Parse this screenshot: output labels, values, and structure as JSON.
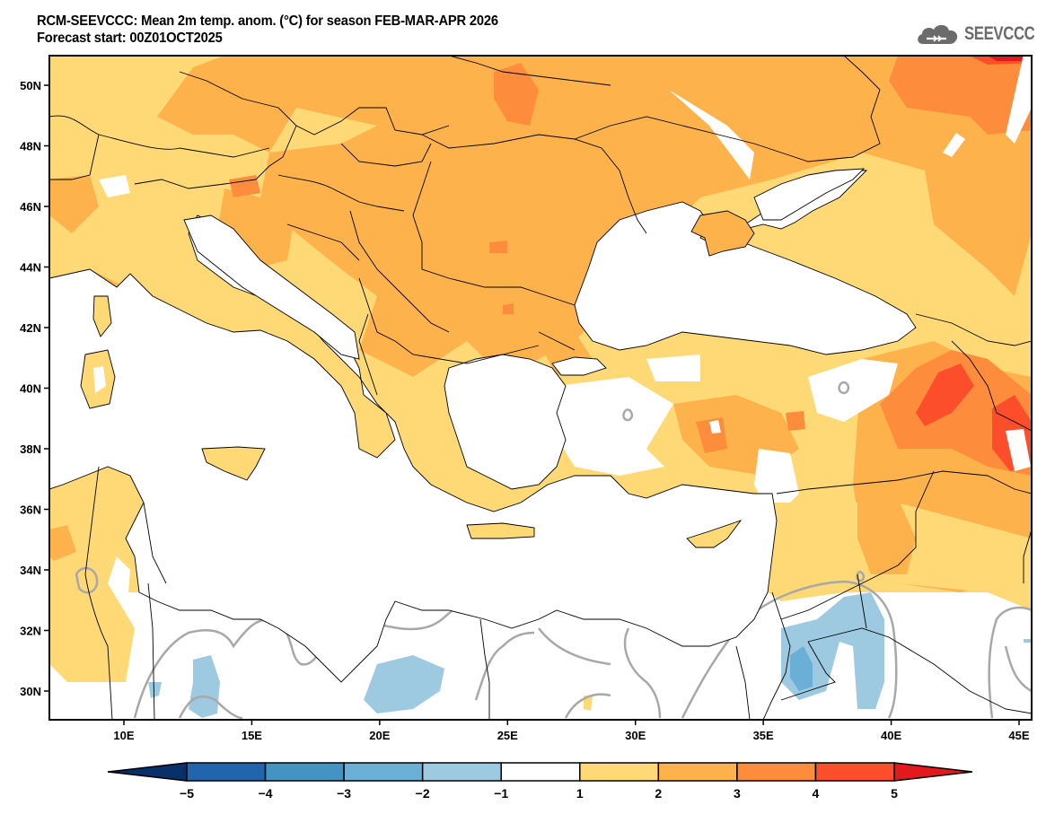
{
  "header": {
    "title_line1": "RCM-SEEVCCC: Mean 2m temp. anom. (°C) for season FEB-MAR-APR 2026",
    "title_line2": "Forecast start: 00Z01OCT2025",
    "logo_text": "SEEVCCC",
    "logo_icon": "cloud-icon"
  },
  "map": {
    "variable": "Mean 2m temperature anomaly",
    "units": "°C",
    "lon_range": [
      7,
      46
    ],
    "lat_range": [
      29,
      51
    ],
    "lat_ticks": [
      {
        "value": 50,
        "label": "50N"
      },
      {
        "value": 48,
        "label": "48N"
      },
      {
        "value": 46,
        "label": "46N"
      },
      {
        "value": 44,
        "label": "44N"
      },
      {
        "value": 42,
        "label": "42N"
      },
      {
        "value": 40,
        "label": "40N"
      },
      {
        "value": 38,
        "label": "38N"
      },
      {
        "value": 36,
        "label": "36N"
      },
      {
        "value": 34,
        "label": "34N"
      },
      {
        "value": 32,
        "label": "32N"
      },
      {
        "value": 30,
        "label": "30N"
      }
    ],
    "lon_ticks": [
      {
        "value": 10,
        "label": "10E"
      },
      {
        "value": 15,
        "label": "15E"
      },
      {
        "value": 20,
        "label": "20E"
      },
      {
        "value": 25,
        "label": "25E"
      },
      {
        "value": 30,
        "label": "30E"
      },
      {
        "value": 35,
        "label": "35E"
      },
      {
        "value": 40,
        "label": "40E"
      },
      {
        "value": 45,
        "label": "45E"
      }
    ]
  },
  "colorbar": {
    "labels": [
      "-5",
      "-4",
      "-3",
      "-2",
      "-1",
      "1",
      "2",
      "3",
      "4",
      "5"
    ],
    "colors": {
      "below_min": "#08306b",
      "bins": [
        "#2166ac",
        "#4393c3",
        "#6baed6",
        "#9ecae1",
        "#ffffff",
        "#fed976",
        "#feb24c",
        "#fd8d3c",
        "#fc4e2a"
      ],
      "above_max": "#e31a1c"
    }
  },
  "palette": {
    "c1_2": "#fed976",
    "c2_3": "#feb24c",
    "c3_4": "#fd8d3c",
    "c4_5": "#fc4e2a",
    "c5p": "#e31a1c",
    "cm1_m2": "#9ecae1",
    "cm2_m3": "#6baed6",
    "zero_contour": "#a8a8a8"
  }
}
